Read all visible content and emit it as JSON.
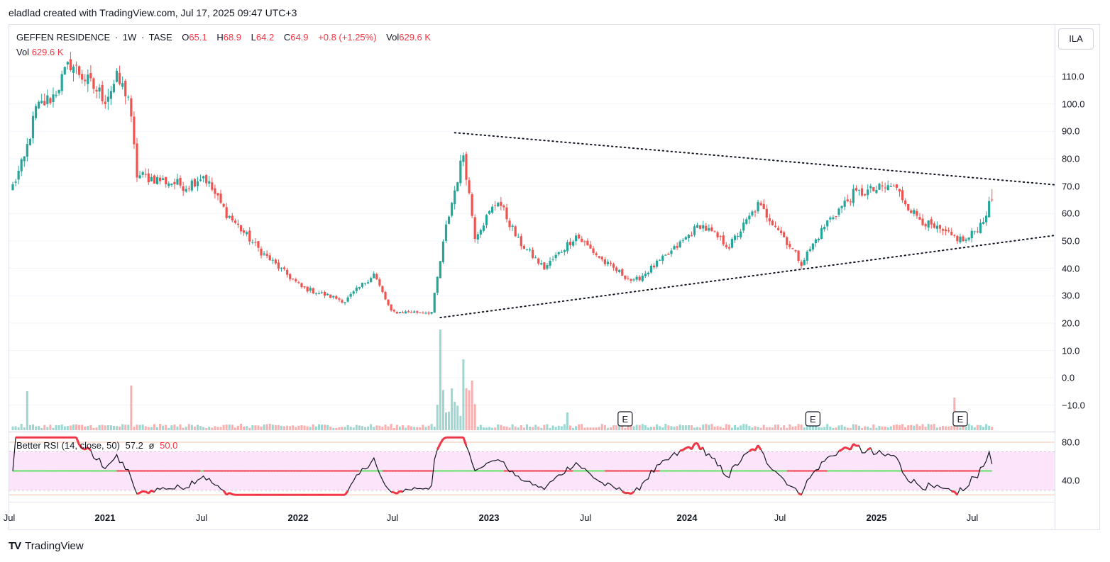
{
  "header": {
    "attribution": "eladlad created with TradingView.com, Jul 17, 2025 09:47 UTC+3"
  },
  "legend": {
    "symbol": "GEFFEN RESIDENCE",
    "interval": "1W",
    "exchange": "TASE",
    "open_label": "O",
    "open": "65.1",
    "high_label": "H",
    "high": "68.9",
    "low_label": "L",
    "low": "64.2",
    "close_label": "C",
    "close": "64.9",
    "change": "+0.8 (+1.25%)",
    "vol_label": "Vol",
    "vol": "629.6 K"
  },
  "volume_legend": {
    "label": "Vol",
    "value": "629.6 K"
  },
  "rsi_legend": {
    "name": "Better RSI (14, close, 50)",
    "value": "57.2",
    "symbol": "ø",
    "ma": "50.0"
  },
  "currency_button": "ILA",
  "footer": {
    "logo": "TV",
    "brand": "TradingView"
  },
  "colors": {
    "up": "#26a69a",
    "down": "#ef5350",
    "rsi_band": "#fce4fa",
    "rsi_mid_up": "#5de05d",
    "rsi_mid_down": "#f23645"
  },
  "chart_data": [
    {
      "type": "candlestick",
      "x_axis_labels": [
        "Jul",
        "2021",
        "Jul",
        "2022",
        "Jul",
        "2023",
        "Jul",
        "2024",
        "Jul",
        "2025",
        "Jul"
      ],
      "y_axis_labels": [
        "110.0",
        "100.0",
        "90.0",
        "80.0",
        "70.0",
        "60.0",
        "50.0",
        "40.0",
        "30.0",
        "20.0",
        "10.0",
        "0.0",
        "−10.0"
      ],
      "ylim": [
        -15,
        123
      ],
      "anchors": [
        {
          "t": 0,
          "v": 70
        },
        {
          "t": 4,
          "v": 80
        },
        {
          "t": 8,
          "v": 98
        },
        {
          "t": 14,
          "v": 103
        },
        {
          "t": 20,
          "v": 115
        },
        {
          "t": 26,
          "v": 108
        },
        {
          "t": 32,
          "v": 102
        },
        {
          "t": 36,
          "v": 109
        },
        {
          "t": 40,
          "v": 103
        },
        {
          "t": 43,
          "v": 74
        },
        {
          "t": 52,
          "v": 72
        },
        {
          "t": 60,
          "v": 70
        },
        {
          "t": 66,
          "v": 74
        },
        {
          "t": 74,
          "v": 60
        },
        {
          "t": 86,
          "v": 46
        },
        {
          "t": 100,
          "v": 33
        },
        {
          "t": 115,
          "v": 28
        },
        {
          "t": 125,
          "v": 38
        },
        {
          "t": 131,
          "v": 24
        },
        {
          "t": 145,
          "v": 24
        },
        {
          "t": 150,
          "v": 55
        },
        {
          "t": 156,
          "v": 82
        },
        {
          "t": 160,
          "v": 52
        },
        {
          "t": 168,
          "v": 65
        },
        {
          "t": 175,
          "v": 50
        },
        {
          "t": 184,
          "v": 40
        },
        {
          "t": 195,
          "v": 52
        },
        {
          "t": 205,
          "v": 42
        },
        {
          "t": 215,
          "v": 35
        },
        {
          "t": 227,
          "v": 45
        },
        {
          "t": 238,
          "v": 56
        },
        {
          "t": 248,
          "v": 48
        },
        {
          "t": 258,
          "v": 63
        },
        {
          "t": 264,
          "v": 56
        },
        {
          "t": 273,
          "v": 42
        },
        {
          "t": 282,
          "v": 57
        },
        {
          "t": 291,
          "v": 67
        },
        {
          "t": 305,
          "v": 70
        },
        {
          "t": 312,
          "v": 60
        },
        {
          "t": 318,
          "v": 55
        },
        {
          "t": 324,
          "v": 52
        },
        {
          "t": 330,
          "v": 50
        },
        {
          "t": 335,
          "v": 56
        },
        {
          "t": 339,
          "v": 64.9
        }
      ],
      "trendlines": [
        {
          "name": "resistance",
          "from": {
            "t": 153,
            "v": 89.5
          },
          "to": {
            "t": 365,
            "v": 70.5
          },
          "style": "dotted"
        },
        {
          "name": "support",
          "from": {
            "t": 148,
            "v": 22
          },
          "to": {
            "t": 365,
            "v": 52
          },
          "style": "dotted"
        }
      ],
      "earnings_markers": [
        {
          "t": 212,
          "label": "E"
        },
        {
          "t": 277,
          "label": "E"
        },
        {
          "t": 328,
          "label": "E"
        }
      ]
    },
    {
      "type": "line",
      "name": "Better RSI",
      "ylim": [
        25,
        85
      ],
      "y_axis_labels": [
        "80.0",
        "40.0"
      ],
      "band": [
        30,
        70
      ],
      "midline": 50,
      "last_value": 57.2
    }
  ]
}
